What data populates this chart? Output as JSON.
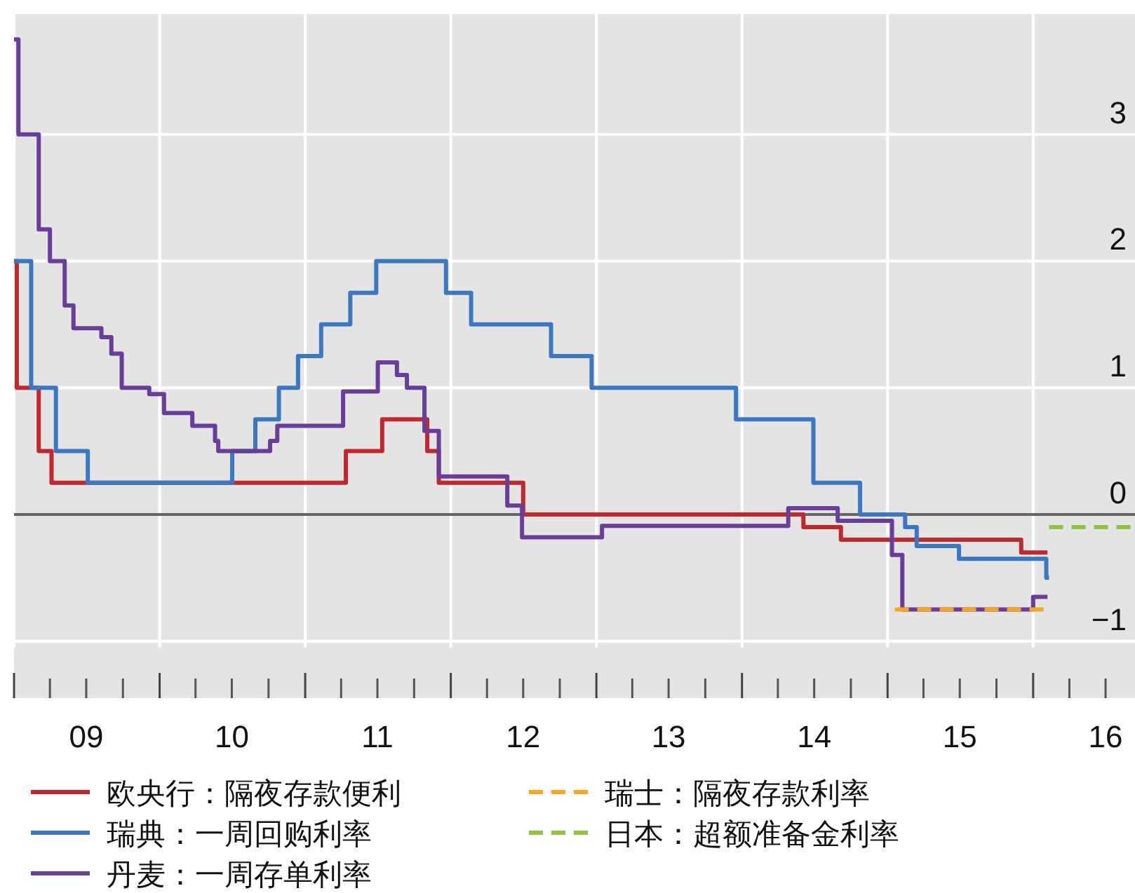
{
  "chart_data": {
    "type": "step",
    "xlim": [
      "2009-01-01",
      "2016-09-13"
    ],
    "ylim": [
      -1.45,
      3.95
    ],
    "xticks": [
      {
        "value": "2009-01-01",
        "label": null
      },
      {
        "value": "2009-04-01",
        "label": null
      },
      {
        "value": "2009-07-01",
        "label": "09"
      },
      {
        "value": "2009-10-01",
        "label": null
      },
      {
        "value": "2010-01-01",
        "label": null
      },
      {
        "value": "2010-04-01",
        "label": null
      },
      {
        "value": "2010-07-01",
        "label": "10"
      },
      {
        "value": "2010-10-01",
        "label": null
      },
      {
        "value": "2011-01-01",
        "label": null
      },
      {
        "value": "2011-04-01",
        "label": null
      },
      {
        "value": "2011-07-01",
        "label": "11"
      },
      {
        "value": "2011-10-01",
        "label": null
      },
      {
        "value": "2012-01-01",
        "label": null
      },
      {
        "value": "2012-04-01",
        "label": null
      },
      {
        "value": "2012-07-01",
        "label": "12"
      },
      {
        "value": "2012-10-01",
        "label": null
      },
      {
        "value": "2013-01-01",
        "label": null
      },
      {
        "value": "2013-04-01",
        "label": null
      },
      {
        "value": "2013-07-01",
        "label": "13"
      },
      {
        "value": "2013-10-01",
        "label": null
      },
      {
        "value": "2014-01-01",
        "label": null
      },
      {
        "value": "2014-04-01",
        "label": null
      },
      {
        "value": "2014-07-01",
        "label": "14"
      },
      {
        "value": "2014-10-01",
        "label": null
      },
      {
        "value": "2015-01-01",
        "label": null
      },
      {
        "value": "2015-04-01",
        "label": null
      },
      {
        "value": "2015-07-01",
        "label": "15"
      },
      {
        "value": "2015-10-01",
        "label": null
      },
      {
        "value": "2016-01-01",
        "label": null
      },
      {
        "value": "2016-04-01",
        "label": null
      },
      {
        "value": "2016-07-01",
        "label": "16"
      }
    ],
    "yticks": [
      {
        "value": -1,
        "label": "−1"
      },
      0,
      1,
      2,
      3
    ],
    "grid": true,
    "legend": "bottom",
    "ref_lines": [
      {
        "axis": "y",
        "value": 0,
        "color": "#666666"
      }
    ],
    "series": [
      {
        "name": "欧央行：隔夜存款便利",
        "color": "#c0282d",
        "line_style": "solid",
        "x": [
          "2009-01-01",
          "2009-01-08",
          "2009-03-04",
          "2009-04-05",
          "2011-04-13",
          "2011-07-13",
          "2011-11-03",
          "2011-12-02",
          "2012-07-01",
          "2014-06-04",
          "2014-09-06",
          "2015-12-02",
          "2016-02-06"
        ],
        "values": [
          2.0,
          1.0,
          0.5,
          0.25,
          0.5,
          0.75,
          0.5,
          0.25,
          0.0,
          -0.1,
          -0.2,
          -0.3,
          -0.3
        ]
      },
      {
        "name": "瑞典：一周回购利率",
        "color": "#3a78c2",
        "line_style": "solid",
        "x": [
          "2009-01-01",
          "2009-02-13",
          "2009-04-16",
          "2009-07-05",
          "2010-07-02",
          "2010-08-29",
          "2010-10-27",
          "2010-12-14",
          "2011-02-10",
          "2011-04-24",
          "2011-06-28",
          "2011-12-20",
          "2012-02-21",
          "2012-09-09",
          "2012-12-20",
          "2013-12-17",
          "2014-06-29",
          "2014-10-24",
          "2015-02-14",
          "2015-03-15",
          "2015-06-29",
          "2016-02-03",
          "2016-02-10"
        ],
        "values": [
          2.0,
          1.0,
          0.5,
          0.25,
          0.5,
          0.75,
          1.0,
          1.25,
          1.5,
          1.75,
          2.0,
          1.75,
          1.5,
          1.25,
          1.0,
          0.75,
          0.25,
          0.0,
          -0.1,
          -0.25,
          -0.35,
          -0.5,
          -0.5
        ]
      },
      {
        "name": "丹麦：一周存单利率",
        "color": "#6a3d9a",
        "line_style": "solid",
        "x": [
          "2009-01-01",
          "2009-01-12",
          "2009-03-04",
          "2009-04-01",
          "2009-05-08",
          "2009-05-30",
          "2009-08-08",
          "2009-09-02",
          "2009-09-28",
          "2009-12-06",
          "2010-01-12",
          "2010-03-24",
          "2010-05-20",
          "2010-05-28",
          "2010-10-05",
          "2010-10-23",
          "2011-04-06",
          "2011-07-02",
          "2011-08-19",
          "2011-09-13",
          "2011-10-27",
          "2011-12-02",
          "2012-05-22",
          "2012-06-28",
          "2013-01-15",
          "2014-04-27",
          "2014-08-29",
          "2015-01-12",
          "2015-02-07",
          "2016-01-01",
          "2016-02-06"
        ],
        "values": [
          3.75,
          3.0,
          2.25,
          2.0,
          1.65,
          1.47,
          1.4,
          1.27,
          1.0,
          0.95,
          0.8,
          0.7,
          0.58,
          0.5,
          0.58,
          0.7,
          0.97,
          1.2,
          1.1,
          1.0,
          0.66,
          0.3,
          0.07,
          -0.18,
          -0.09,
          0.05,
          -0.05,
          -0.32,
          -0.75,
          -0.65,
          -0.65
        ]
      },
      {
        "name": "瑞士：隔夜存款利率",
        "color": "#f5a623",
        "line_style": "dashed",
        "x": [
          "2015-01-19",
          "2016-02-06"
        ],
        "values": [
          -0.75,
          -0.75
        ]
      },
      {
        "name": "日本：超额准备金利率",
        "color": "#8dc63f",
        "line_style": "dashed",
        "x": [
          "2016-02-10",
          "2016-09-13"
        ],
        "values": [
          -0.1,
          -0.1
        ]
      }
    ]
  }
}
